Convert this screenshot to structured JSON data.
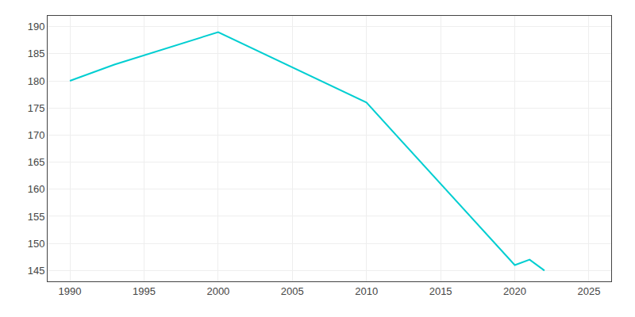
{
  "chart_data": {
    "type": "line",
    "x": [
      1990,
      1993,
      2000,
      2010,
      2020,
      2021,
      2022
    ],
    "values": [
      180,
      183,
      189,
      176,
      146,
      147,
      145
    ],
    "color": "#00CED1",
    "xlim": [
      1988.5,
      2026.5
    ],
    "ylim": [
      143,
      192
    ],
    "xticks": [
      1990,
      1995,
      2000,
      2005,
      2010,
      2015,
      2020,
      2025
    ],
    "yticks": [
      145,
      150,
      155,
      160,
      165,
      170,
      175,
      180,
      185,
      190
    ],
    "grid": true
  }
}
